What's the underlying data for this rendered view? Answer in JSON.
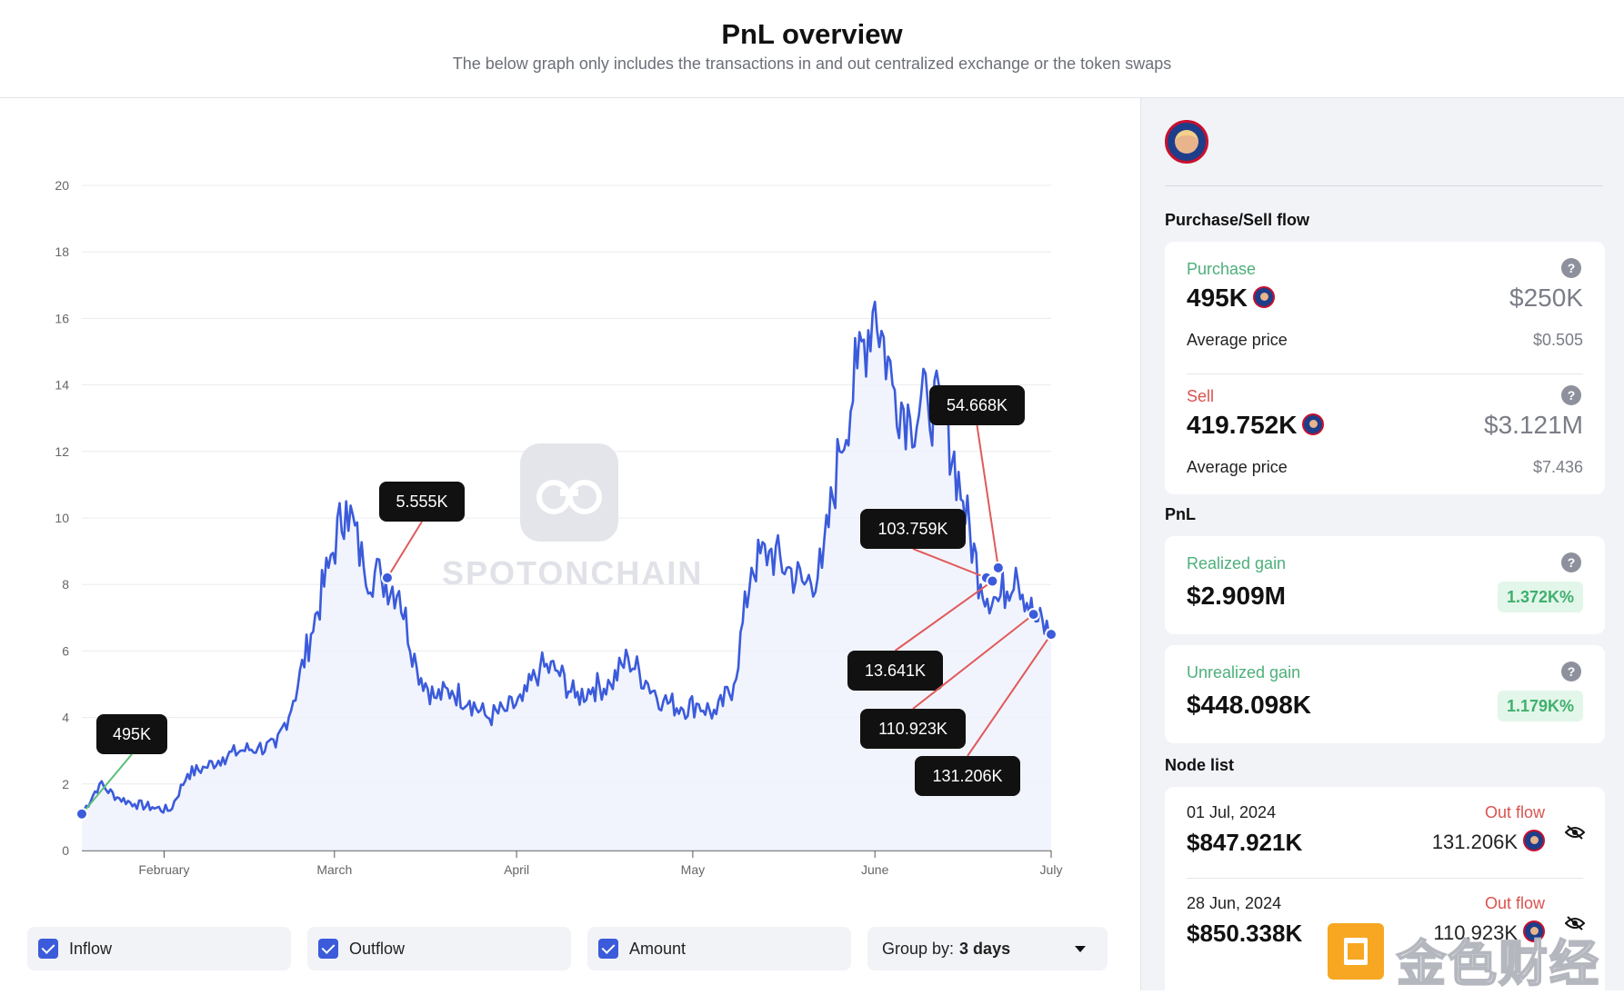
{
  "header": {
    "title": "PnL overview",
    "subtitle": "The below graph only includes the transactions in and out centralized exchange or the token swaps"
  },
  "watermark": {
    "text": "SPOTONCHAIN"
  },
  "chart_data": {
    "type": "line",
    "title": "",
    "xlabel": "",
    "ylabel": "",
    "ylim": [
      0,
      20
    ],
    "y_ticks": [
      "0",
      "2",
      "4",
      "6",
      "8",
      "10",
      "12",
      "14",
      "16",
      "18",
      "20"
    ],
    "x_ticks": [
      "February",
      "March",
      "April",
      "May",
      "June",
      "July"
    ],
    "grid": true,
    "series": [
      {
        "name": "",
        "color": "#3b5bdb",
        "x": [
          "2024-01-18",
          "2024-01-21",
          "2024-01-24",
          "2024-01-27",
          "2024-01-30",
          "2024-02-02",
          "2024-02-05",
          "2024-02-08",
          "2024-02-11",
          "2024-02-14",
          "2024-02-17",
          "2024-02-20",
          "2024-02-23",
          "2024-02-26",
          "2024-02-29",
          "2024-03-03",
          "2024-03-06",
          "2024-03-09",
          "2024-03-12",
          "2024-03-15",
          "2024-03-18",
          "2024-03-21",
          "2024-03-24",
          "2024-03-27",
          "2024-03-30",
          "2024-04-02",
          "2024-04-05",
          "2024-04-08",
          "2024-04-11",
          "2024-04-14",
          "2024-04-17",
          "2024-04-20",
          "2024-04-23",
          "2024-04-26",
          "2024-04-29",
          "2024-05-02",
          "2024-05-05",
          "2024-05-08",
          "2024-05-11",
          "2024-05-14",
          "2024-05-17",
          "2024-05-20",
          "2024-05-23",
          "2024-05-26",
          "2024-05-29",
          "2024-06-01",
          "2024-06-04",
          "2024-06-07",
          "2024-06-10",
          "2024-06-13",
          "2024-06-16",
          "2024-06-19",
          "2024-06-22",
          "2024-06-25",
          "2024-06-28",
          "2024-07-01"
        ],
        "values": [
          1.1,
          2.0,
          1.6,
          1.4,
          1.3,
          1.2,
          2.3,
          2.5,
          2.8,
          3.0,
          3.1,
          3.1,
          4.5,
          6.5,
          8.5,
          10.5,
          8.5,
          8.2,
          7.8,
          5.5,
          4.6,
          4.8,
          4.5,
          4.0,
          4.2,
          4.5,
          5.5,
          5.4,
          4.6,
          4.9,
          5.0,
          5.8,
          5.1,
          4.5,
          4.3,
          4.4,
          4.1,
          5.0,
          8.5,
          9.0,
          8.5,
          8.0,
          8.5,
          12.0,
          14.5,
          16.5,
          14.0,
          13.0,
          13.5,
          13.0,
          10.5,
          8.0,
          7.5,
          8.5,
          7.0,
          6.5
        ]
      }
    ],
    "markers": [
      {
        "x": "2024-01-18",
        "y": 1.1,
        "label": "495K",
        "line_color": "#5bbf7a"
      },
      {
        "x": "2024-03-10",
        "y": 8.2,
        "label": "5.555K",
        "line_color": "#e05a5a"
      },
      {
        "x": "2024-06-20",
        "y": 8.2,
        "label": "103.759K",
        "line_color": "#e05a5a"
      },
      {
        "x": "2024-06-21",
        "y": 8.1,
        "label": "13.641K",
        "line_color": "#e05a5a"
      },
      {
        "x": "2024-06-22",
        "y": 8.5,
        "label": "54.668K",
        "line_color": "#e05a5a"
      },
      {
        "x": "2024-06-28",
        "y": 7.1,
        "label": "110.923K",
        "line_color": "#e05a5a"
      },
      {
        "x": "2024-07-01",
        "y": 6.5,
        "label": "131.206K",
        "line_color": "#e05a5a"
      }
    ]
  },
  "toggles": [
    {
      "label": "Inflow",
      "checked": true
    },
    {
      "label": "Outflow",
      "checked": true
    },
    {
      "label": "Amount",
      "checked": true
    }
  ],
  "group_by": {
    "label": "Group by:",
    "value": "3 days"
  },
  "side": {
    "flow_title": "Purchase/Sell flow",
    "purchase": {
      "label": "Purchase",
      "amount": "495K",
      "usd": "$250K",
      "avg_label": "Average price",
      "avg_value": "$0.505"
    },
    "sell": {
      "label": "Sell",
      "amount": "419.752K",
      "usd": "$3.121M",
      "avg_label": "Average price",
      "avg_value": "$7.436"
    },
    "pnl_title": "PnL",
    "realized": {
      "label": "Realized gain",
      "value": "$2.909M",
      "pct": "1.372K%"
    },
    "unrealized": {
      "label": "Unrealized gain",
      "value": "$448.098K",
      "pct": "1.179K%"
    },
    "node_title": "Node list",
    "nodes": [
      {
        "date": "01 Jul, 2024",
        "value": "$847.921K",
        "type": "Out flow",
        "amount": "131.206K"
      },
      {
        "date": "28 Jun, 2024",
        "value": "$850.338K",
        "type": "Out flow",
        "amount": "110.923K"
      }
    ]
  },
  "corner_watermark": {
    "text": "金色财经"
  }
}
